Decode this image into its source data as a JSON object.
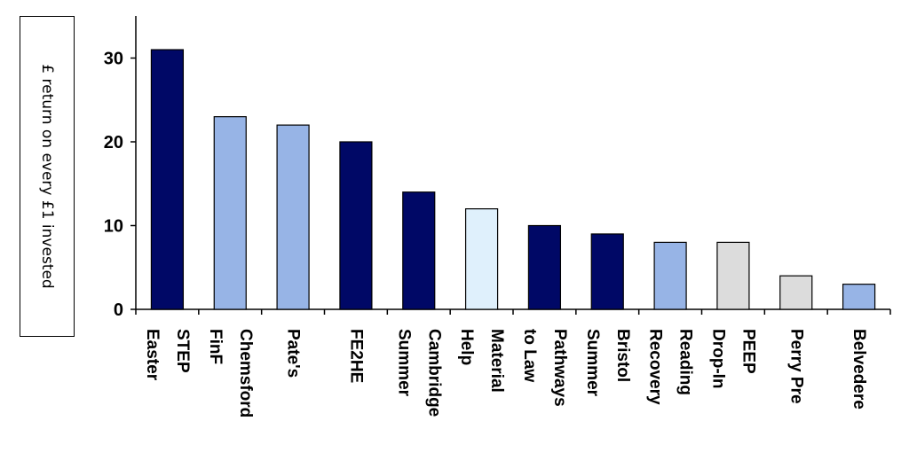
{
  "chart_data": {
    "type": "bar",
    "title": "",
    "xlabel": "",
    "ylabel": "£ return on every  £1 invested",
    "ylim": [
      0,
      35
    ],
    "yticks": [
      0,
      10,
      20,
      30
    ],
    "grid": false,
    "categories": [
      [
        "Easter",
        "STEP"
      ],
      [
        "FinF",
        "Chemsford"
      ],
      [
        "Pate's"
      ],
      [
        "FE2HE"
      ],
      [
        "Summer",
        "Cambridge"
      ],
      [
        "Help",
        "Material"
      ],
      [
        "to Law",
        "Pathways"
      ],
      [
        "Summer",
        "Bristol"
      ],
      [
        "Recovery",
        "Reading"
      ],
      [
        "Drop-In",
        "PEEP"
      ],
      [
        "Perry Pre"
      ],
      [
        "Belvedere"
      ]
    ],
    "values": [
      31,
      23,
      22,
      20,
      14,
      12,
      10,
      9,
      8,
      8,
      4,
      3
    ],
    "colors": [
      "#000866",
      "#97b4e6",
      "#97b4e6",
      "#000866",
      "#000866",
      "#dff0fc",
      "#000866",
      "#000866",
      "#97b4e6",
      "#dcdcdc",
      "#dcdcdc",
      "#97b4e6"
    ]
  }
}
